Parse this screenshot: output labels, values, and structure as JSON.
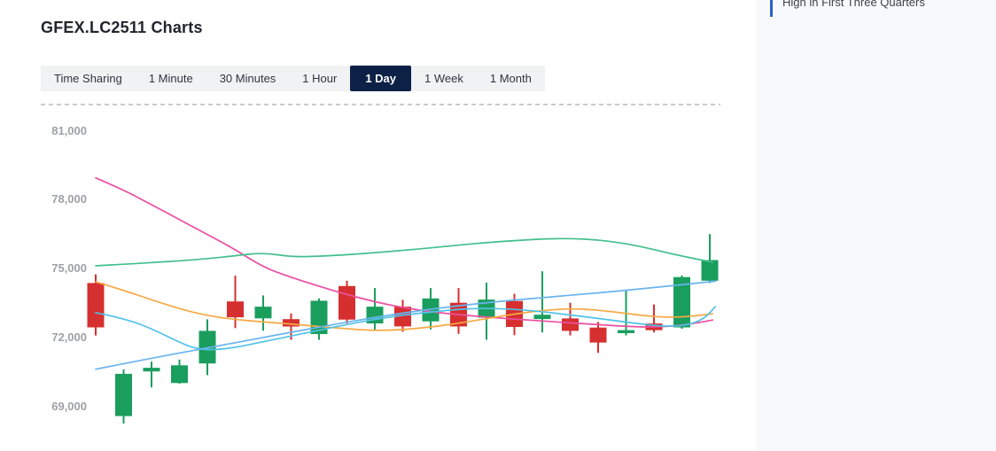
{
  "header": {
    "title": "GFEX.LC2511 Charts"
  },
  "tabs": {
    "items": [
      "Time Sharing",
      "1 Minute",
      "30 Minutes",
      "1 Hour",
      "1 Day",
      "1 Week",
      "1 Month"
    ],
    "active": "1 Day",
    "active_index": 4,
    "active_bg": "#0c2145",
    "bar_bg": "#f1f2f4"
  },
  "side_panel": {
    "accent_color": "#2a62c6",
    "items": [
      {
        "title": "High in First Three Quarters"
      }
    ]
  },
  "chart_data": {
    "type": "candlestick",
    "title": "GFEX.LC2511 Charts",
    "interval": "1 Day",
    "grid": false,
    "y_axis": {
      "ticks": [
        {
          "label": "81,000",
          "value": 81000
        },
        {
          "label": "78,000",
          "value": 78000
        },
        {
          "label": "75,000",
          "value": 75000
        },
        {
          "label": "72,000",
          "value": 72000
        },
        {
          "label": "69,000",
          "value": 69000
        }
      ],
      "range": [
        68100,
        81600
      ]
    },
    "x_axis": {
      "labels_visible": false,
      "candle_count": 23
    },
    "colors": {
      "up": "#1a9e5e",
      "down": "#d62f2f"
    },
    "candles": [
      {
        "open": 74370,
        "high": 74750,
        "low": 72090,
        "close": 72440,
        "dir": "down"
      },
      {
        "open": 68580,
        "high": 70610,
        "low": 68250,
        "close": 70420,
        "dir": "up"
      },
      {
        "open": 70520,
        "high": 70950,
        "low": 69830,
        "close": 70680,
        "dir": "up"
      },
      {
        "open": 70020,
        "high": 71040,
        "low": 69990,
        "close": 70790,
        "dir": "up"
      },
      {
        "open": 70870,
        "high": 72790,
        "low": 70360,
        "close": 72290,
        "dir": "up"
      },
      {
        "open": 73570,
        "high": 74690,
        "low": 72410,
        "close": 72880,
        "dir": "down"
      },
      {
        "open": 72830,
        "high": 73830,
        "low": 72300,
        "close": 73340,
        "dir": "up"
      },
      {
        "open": 72800,
        "high": 73050,
        "low": 71900,
        "close": 72480,
        "dir": "down"
      },
      {
        "open": 72150,
        "high": 73700,
        "low": 71900,
        "close": 73600,
        "dir": "up"
      },
      {
        "open": 74240,
        "high": 74470,
        "low": 72610,
        "close": 72780,
        "dir": "down"
      },
      {
        "open": 72610,
        "high": 74150,
        "low": 72290,
        "close": 73340,
        "dir": "up"
      },
      {
        "open": 73340,
        "high": 73640,
        "low": 72250,
        "close": 72480,
        "dir": "down"
      },
      {
        "open": 72700,
        "high": 74150,
        "low": 72350,
        "close": 73700,
        "dir": "up"
      },
      {
        "open": 73510,
        "high": 74150,
        "low": 72160,
        "close": 72480,
        "dir": "down"
      },
      {
        "open": 72860,
        "high": 74390,
        "low": 71900,
        "close": 73650,
        "dir": "up"
      },
      {
        "open": 73590,
        "high": 73900,
        "low": 72100,
        "close": 72460,
        "dir": "down"
      },
      {
        "open": 72800,
        "high": 74880,
        "low": 72220,
        "close": 72990,
        "dir": "up"
      },
      {
        "open": 72830,
        "high": 73510,
        "low": 72090,
        "close": 72290,
        "dir": "down"
      },
      {
        "open": 72430,
        "high": 72680,
        "low": 71330,
        "close": 71780,
        "dir": "down"
      },
      {
        "open": 72190,
        "high": 74020,
        "low": 72090,
        "close": 72320,
        "dir": "up"
      },
      {
        "open": 72610,
        "high": 73440,
        "low": 72220,
        "close": 72320,
        "dir": "down"
      },
      {
        "open": 72440,
        "high": 74700,
        "low": 72380,
        "close": 74630,
        "dir": "up"
      },
      {
        "open": 74470,
        "high": 76500,
        "low": 74370,
        "close": 75370,
        "dir": "up"
      }
    ],
    "ma_lines": [
      {
        "name": "ma-pink",
        "color": "#ec4f9f",
        "points": [
          [
            0,
            78950
          ],
          [
            1,
            78420
          ],
          [
            2,
            77780
          ],
          [
            3,
            77130
          ],
          [
            4,
            76480
          ],
          [
            5,
            75830
          ],
          [
            6,
            75060
          ],
          [
            7,
            74620
          ],
          [
            8,
            74230
          ],
          [
            9,
            73870
          ],
          [
            10,
            73550
          ],
          [
            11,
            73300
          ],
          [
            12,
            73120
          ],
          [
            13,
            72990
          ],
          [
            14,
            72890
          ],
          [
            15,
            72800
          ],
          [
            16,
            72720
          ],
          [
            17,
            72640
          ],
          [
            18,
            72560
          ],
          [
            19,
            72480
          ],
          [
            20,
            72450
          ],
          [
            21,
            72520
          ],
          [
            22.1,
            72760
          ]
        ]
      },
      {
        "name": "ma-green",
        "color": "#43bf8d",
        "points": [
          [
            0,
            75120
          ],
          [
            1,
            75190
          ],
          [
            2,
            75260
          ],
          [
            3,
            75330
          ],
          [
            4,
            75430
          ],
          [
            5,
            75560
          ],
          [
            6,
            75690
          ],
          [
            7,
            75510
          ],
          [
            8,
            75530
          ],
          [
            9,
            75600
          ],
          [
            10,
            75690
          ],
          [
            11,
            75790
          ],
          [
            12,
            75900
          ],
          [
            13,
            76020
          ],
          [
            14,
            76130
          ],
          [
            15,
            76220
          ],
          [
            16,
            76290
          ],
          [
            17,
            76310
          ],
          [
            18,
            76250
          ],
          [
            19,
            76090
          ],
          [
            20,
            75830
          ],
          [
            21,
            75540
          ],
          [
            22.1,
            75280
          ]
        ]
      },
      {
        "name": "ma-orange",
        "color": "#f6a944",
        "points": [
          [
            0,
            74420
          ],
          [
            1,
            74050
          ],
          [
            2,
            73640
          ],
          [
            3,
            73250
          ],
          [
            4,
            72950
          ],
          [
            5,
            72780
          ],
          [
            6,
            72680
          ],
          [
            7,
            72590
          ],
          [
            8,
            72480
          ],
          [
            9,
            72380
          ],
          [
            10,
            72300
          ],
          [
            11,
            72340
          ],
          [
            12,
            72450
          ],
          [
            13,
            72620
          ],
          [
            14,
            72820
          ],
          [
            15,
            73020
          ],
          [
            16,
            73180
          ],
          [
            17,
            73260
          ],
          [
            18,
            73200
          ],
          [
            19,
            73050
          ],
          [
            20,
            72900
          ],
          [
            21,
            72880
          ],
          [
            22.1,
            73030
          ]
        ]
      },
      {
        "name": "ma-cyan",
        "color": "#52c2e8",
        "points": [
          [
            0,
            73080
          ],
          [
            1,
            72840
          ],
          [
            2,
            72390
          ],
          [
            3,
            71790
          ],
          [
            3.6,
            71500
          ],
          [
            4.3,
            71460
          ],
          [
            5,
            71570
          ],
          [
            6,
            71820
          ],
          [
            7,
            72070
          ],
          [
            8,
            72320
          ],
          [
            9,
            72570
          ],
          [
            10,
            72790
          ],
          [
            11,
            72970
          ],
          [
            12,
            73110
          ],
          [
            13,
            73230
          ],
          [
            13.8,
            73270
          ],
          [
            14.8,
            73250
          ],
          [
            15.8,
            73150
          ],
          [
            16.8,
            73010
          ],
          [
            17.8,
            72860
          ],
          [
            18.8,
            72700
          ],
          [
            19.7,
            72560
          ],
          [
            20.5,
            72480
          ],
          [
            21.2,
            72540
          ],
          [
            21.8,
            72810
          ],
          [
            22.2,
            73340
          ]
        ]
      },
      {
        "name": "ma-skyblue",
        "color": "#6ab4f0",
        "points": [
          [
            0,
            70620
          ],
          [
            2,
            71100
          ],
          [
            4,
            71550
          ],
          [
            6,
            72000
          ],
          [
            8,
            72450
          ],
          [
            10,
            72880
          ],
          [
            12,
            73240
          ],
          [
            14,
            73520
          ],
          [
            16,
            73740
          ],
          [
            18,
            73940
          ],
          [
            20,
            74170
          ],
          [
            22.2,
            74450
          ]
        ]
      }
    ]
  }
}
